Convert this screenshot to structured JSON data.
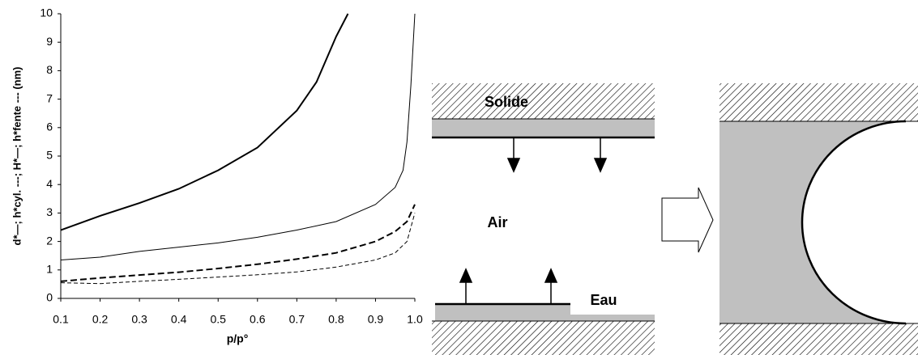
{
  "chart_data": {
    "type": "line",
    "y_label": "d*—; h*cyl. ---; H*—; h*fente --- (nm)",
    "x_label": "p/p°",
    "xlim": [
      0.1,
      1
    ],
    "ylim": [
      0,
      10
    ],
    "xticks": [
      0.1,
      0.2,
      0.3,
      0.4,
      0.5,
      0.6,
      0.7,
      0.8,
      0.9,
      {
        "value": 1,
        "label": "1.0"
      }
    ],
    "yticks": [
      0,
      1,
      2,
      3,
      4,
      5,
      6,
      7,
      8,
      9,
      10
    ],
    "series": [
      {
        "color": "#000000",
        "dash": "solid",
        "width": 2,
        "x": [
          0.1,
          0.2,
          0.3,
          0.4,
          0.5,
          0.6,
          0.7,
          0.75,
          0.8,
          0.83
        ],
        "values": [
          2.4,
          2.9,
          3.35,
          3.85,
          4.5,
          5.3,
          6.6,
          7.6,
          9.2,
          10
        ]
      },
      {
        "color": "#000000",
        "dash": "solid",
        "width": 1,
        "x": [
          0.1,
          0.2,
          0.3,
          0.4,
          0.5,
          0.6,
          0.7,
          0.8,
          0.9,
          0.95,
          0.97,
          0.98,
          0.99,
          1
        ],
        "values": [
          1.35,
          1.45,
          1.65,
          1.8,
          1.95,
          2.15,
          2.4,
          2.7,
          3.3,
          3.9,
          4.5,
          5.5,
          7.5,
          10
        ]
      },
      {
        "color": "#000000",
        "dash": "dashed",
        "width": 2,
        "x": [
          0.1,
          0.2,
          0.3,
          0.4,
          0.5,
          0.6,
          0.7,
          0.8,
          0.9,
          0.95,
          0.98,
          1
        ],
        "values": [
          0.6,
          0.72,
          0.82,
          0.92,
          1.05,
          1.2,
          1.38,
          1.6,
          2.0,
          2.35,
          2.7,
          3.3
        ]
      },
      {
        "color": "#000000",
        "dash": "dashed",
        "width": 1,
        "x": [
          0.1,
          0.2,
          0.3,
          0.4,
          0.5,
          0.6,
          0.7,
          0.8,
          0.9,
          0.95,
          0.98,
          1
        ],
        "values": [
          0.55,
          0.52,
          0.6,
          0.67,
          0.75,
          0.83,
          0.93,
          1.1,
          1.35,
          1.6,
          2.0,
          3.0
        ]
      }
    ]
  },
  "diagram": {
    "solid_label": "Solide",
    "air_label": "Air",
    "water_label": "Eau"
  }
}
